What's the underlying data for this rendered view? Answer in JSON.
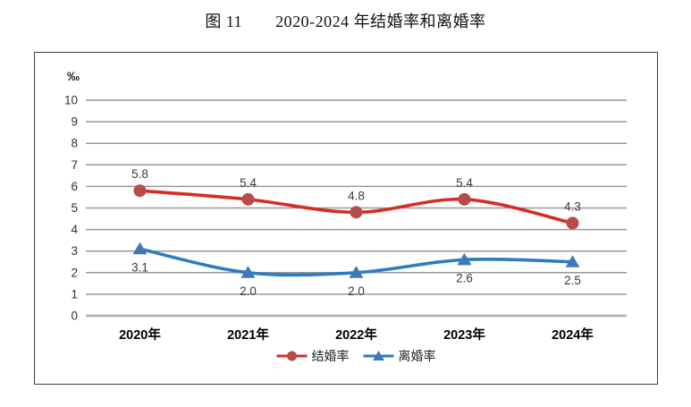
{
  "page": {
    "title": "图 11　　2020-2024 年结婚率和离婚率"
  },
  "chart_data": {
    "type": "line",
    "title": "图 11　　2020-2024 年结婚率和离婚率",
    "unit_label": "‰",
    "categories": [
      "2020年",
      "2021年",
      "2022年",
      "2023年",
      "2024年"
    ],
    "series": [
      {
        "name": "结婚率",
        "semantic": "marriage-rate",
        "values": [
          5.8,
          5.4,
          4.8,
          5.4,
          4.3
        ],
        "marker": "circle",
        "line_color": "#d92b26",
        "marker_color": "#b64c47",
        "label_side": "above"
      },
      {
        "name": "离婚率",
        "semantic": "divorce-rate",
        "values": [
          3.1,
          2.0,
          2.0,
          2.6,
          2.5
        ],
        "marker": "triangle",
        "line_color": "#2d7cc2",
        "marker_color": "#3f79b8",
        "label_side": "below"
      }
    ],
    "ylim": [
      0,
      10
    ],
    "yticks": [
      0,
      1,
      2,
      3,
      4,
      5,
      6,
      7,
      8,
      9,
      10
    ],
    "label_decimals": 1,
    "grid": true,
    "smooth": true,
    "legend_position": "bottom-center",
    "grid_color": "#989898",
    "baseline_color": "#b0b0b0",
    "tick_label_color": "#303030",
    "data_label_color": "#3a3a3a",
    "x_label_color": "#000000"
  }
}
